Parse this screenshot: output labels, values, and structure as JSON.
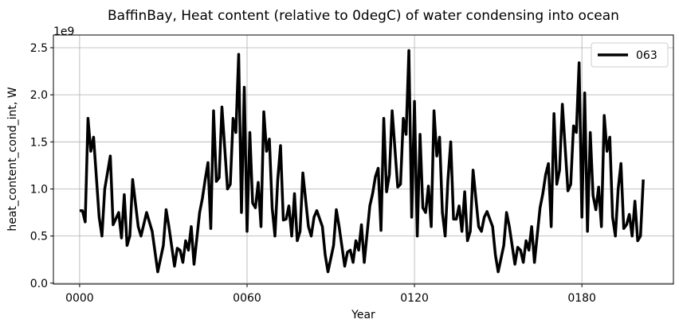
{
  "chart_data": {
    "type": "line",
    "title": "BaffinBay, Heat content (relative to 0degC) of water condensing into ocean",
    "x_label": "Year",
    "y_label": "heat_content_cond_int, W",
    "y_offset_label": "1e9",
    "x": [
      0,
      1,
      2,
      3,
      4,
      5,
      7,
      8,
      9,
      11,
      12,
      14,
      15,
      16,
      17,
      18,
      19,
      21,
      22,
      24,
      26,
      28,
      30,
      31,
      32,
      34,
      35,
      36,
      37,
      38,
      39,
      40,
      41,
      43,
      44,
      45,
      46,
      47,
      48,
      49,
      50,
      51,
      53,
      54,
      55,
      56,
      57,
      58,
      59,
      60,
      61,
      62,
      63,
      64,
      65,
      66,
      67,
      68,
      69,
      70,
      71,
      72,
      73,
      74,
      75,
      76,
      77,
      78,
      79,
      80,
      82,
      83,
      84,
      85,
      87,
      88,
      89,
      91,
      92,
      93,
      95,
      96,
      97,
      98,
      99,
      100,
      101,
      102,
      104,
      105,
      106,
      107,
      108,
      109,
      110,
      111,
      112,
      114,
      115,
      116,
      117,
      118,
      119,
      120,
      121,
      122,
      123,
      124,
      125,
      126,
      127,
      128,
      129,
      130,
      131,
      132,
      133,
      134,
      135,
      136,
      137,
      138,
      139,
      140,
      141,
      143,
      144,
      145,
      146,
      148,
      149,
      150,
      152,
      153,
      154,
      156,
      157,
      158,
      159,
      160,
      161,
      162,
      163,
      165,
      166,
      167,
      168,
      169,
      170,
      171,
      172,
      173,
      175,
      176,
      177,
      178,
      179,
      180,
      181,
      182,
      183,
      184,
      185,
      186,
      187,
      188,
      189,
      190,
      191,
      192,
      193,
      194,
      195,
      196,
      197,
      198,
      199,
      200,
      201,
      202
    ],
    "series": [
      {
        "name": "063",
        "color": "#000000",
        "values": [
          0.77,
          0.77,
          0.65,
          1.75,
          1.4,
          1.55,
          0.7,
          0.5,
          1.0,
          1.35,
          0.62,
          0.75,
          0.48,
          0.94,
          0.4,
          0.5,
          1.1,
          0.6,
          0.5,
          0.75,
          0.55,
          0.12,
          0.4,
          0.78,
          0.6,
          0.18,
          0.37,
          0.35,
          0.22,
          0.45,
          0.35,
          0.6,
          0.2,
          0.75,
          0.9,
          1.1,
          1.28,
          0.58,
          1.83,
          1.08,
          1.12,
          1.87,
          1.0,
          1.05,
          1.75,
          1.6,
          2.43,
          0.75,
          2.08,
          0.55,
          1.6,
          0.85,
          0.8,
          1.07,
          0.6,
          1.82,
          1.4,
          1.53,
          0.8,
          0.5,
          1.1,
          1.46,
          0.67,
          0.68,
          0.82,
          0.5,
          0.95,
          0.45,
          0.55,
          1.17,
          0.6,
          0.5,
          0.7,
          0.77,
          0.6,
          0.3,
          0.12,
          0.4,
          0.78,
          0.6,
          0.18,
          0.33,
          0.35,
          0.22,
          0.45,
          0.35,
          0.62,
          0.22,
          0.82,
          0.95,
          1.13,
          1.22,
          0.56,
          1.75,
          0.97,
          1.15,
          1.83,
          1.02,
          1.05,
          1.75,
          1.58,
          2.47,
          0.7,
          1.93,
          0.5,
          1.58,
          0.8,
          0.75,
          1.03,
          0.6,
          1.83,
          1.35,
          1.55,
          0.75,
          0.5,
          1.1,
          1.5,
          0.68,
          0.68,
          0.82,
          0.55,
          0.97,
          0.45,
          0.55,
          1.2,
          0.6,
          0.55,
          0.7,
          0.76,
          0.6,
          0.3,
          0.12,
          0.4,
          0.75,
          0.6,
          0.2,
          0.38,
          0.35,
          0.22,
          0.45,
          0.35,
          0.6,
          0.22,
          0.8,
          0.95,
          1.15,
          1.27,
          0.6,
          1.8,
          1.05,
          1.2,
          1.9,
          0.98,
          1.05,
          1.67,
          1.6,
          2.34,
          0.7,
          2.02,
          0.55,
          1.6,
          0.93,
          0.78,
          1.02,
          0.6,
          1.78,
          1.4,
          1.55,
          0.7,
          0.5,
          1.0,
          1.27,
          0.58,
          0.62,
          0.73,
          0.5,
          0.87,
          0.45,
          0.5,
          1.1
        ]
      }
    ],
    "xlim": [
      -9.4,
      212.8
    ],
    "ylim": [
      -0.01,
      2.635
    ],
    "xticks": [
      {
        "value": 0,
        "label": "0000"
      },
      {
        "value": 60,
        "label": "0060"
      },
      {
        "value": 120,
        "label": "0120"
      },
      {
        "value": 180,
        "label": "0180"
      }
    ],
    "yticks": [
      {
        "value": 0,
        "label": "0.0"
      },
      0.5,
      {
        "value": 1,
        "label": "1.0"
      },
      1.5,
      {
        "value": 2,
        "label": "2.0"
      },
      2.5
    ],
    "grid": true,
    "legend": "upper right"
  }
}
